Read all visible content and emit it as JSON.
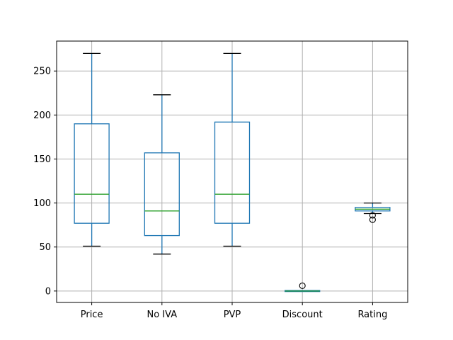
{
  "chart_data": {
    "type": "box",
    "categories": [
      "Price",
      "No IVA",
      "PVP",
      "Discount",
      "Rating"
    ],
    "boxes": [
      {
        "name": "Price",
        "whisker_low": 51,
        "q1": 77,
        "median": 110,
        "q3": 190,
        "whisker_high": 270,
        "outliers": []
      },
      {
        "name": "No IVA",
        "whisker_low": 42,
        "q1": 63,
        "median": 91,
        "q3": 157,
        "whisker_high": 223,
        "outliers": []
      },
      {
        "name": "PVP",
        "whisker_low": 51,
        "q1": 77,
        "median": 110,
        "q3": 192,
        "whisker_high": 270,
        "outliers": []
      },
      {
        "name": "Discount",
        "whisker_low": 0,
        "q1": 0,
        "median": 0,
        "q3": 0,
        "whisker_high": 0,
        "outliers": [
          6
        ]
      },
      {
        "name": "Rating",
        "whisker_low": 88,
        "q1": 91,
        "median": 93,
        "q3": 95,
        "whisker_high": 100,
        "outliers": [
          86,
          81
        ]
      }
    ],
    "ylim": [
      -13,
      284
    ],
    "yticks": [
      0,
      50,
      100,
      150,
      200,
      250
    ],
    "grid": true,
    "colors": {
      "box": "#1f77b4",
      "median": "#2ca02c",
      "whisker_cap": "#000000",
      "grid": "#b0b0b0"
    }
  }
}
